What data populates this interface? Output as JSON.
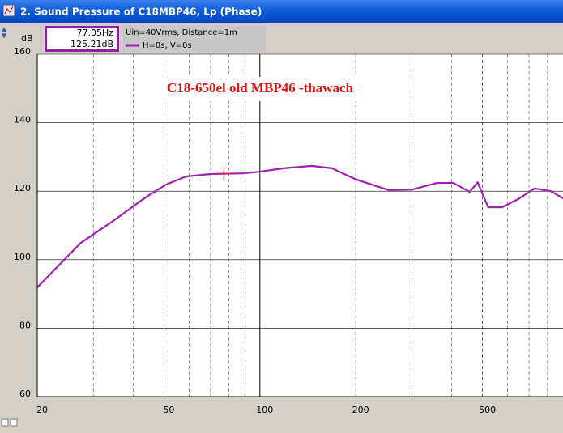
{
  "window_title": "2. Sound Pressure of C18MBP46, Lp (Phase)",
  "chart_data": {
    "type": "line",
    "y_unit": "dB",
    "annotation": "C18-650el  old MBP46 -thawach",
    "legend_header": "Uin=40Vrms, Distance=1m",
    "cursor": {
      "x": 77.05,
      "y": 125.21,
      "labels": [
        "77.05Hz",
        "125.21dB"
      ]
    },
    "x": [
      20,
      27.4,
      34.6,
      43.8,
      50.7,
      58.7,
      69.9,
      88.4,
      100,
      118.5,
      145.5,
      168.4,
      200.8,
      254,
      302,
      360,
      405,
      456,
      483,
      521,
      576,
      648,
      729,
      820,
      895
    ],
    "series": [
      {
        "name": "H=0s, V=0s",
        "color": "#a020b0",
        "values": [
          91.9,
          104.9,
          111.3,
          118.2,
          121.9,
          124.3,
          125.0,
          125.2,
          125.7,
          126.7,
          127.4,
          126.7,
          123.4,
          120.3,
          120.5,
          122.4,
          122.4,
          119.8,
          122.6,
          115.3,
          115.3,
          117.7,
          120.8,
          120.0,
          117.9
        ]
      }
    ],
    "xlog": true,
    "xlim": [
      20,
      895
    ],
    "xticks": [
      20,
      50,
      100,
      200,
      500
    ],
    "xgrid_minor": [
      30,
      40,
      60,
      70,
      80,
      90,
      300,
      400,
      600,
      700,
      800
    ],
    "ylim": [
      60,
      160
    ],
    "yticks": [
      60,
      80,
      100,
      120,
      140,
      160
    ],
    "grid": true
  }
}
